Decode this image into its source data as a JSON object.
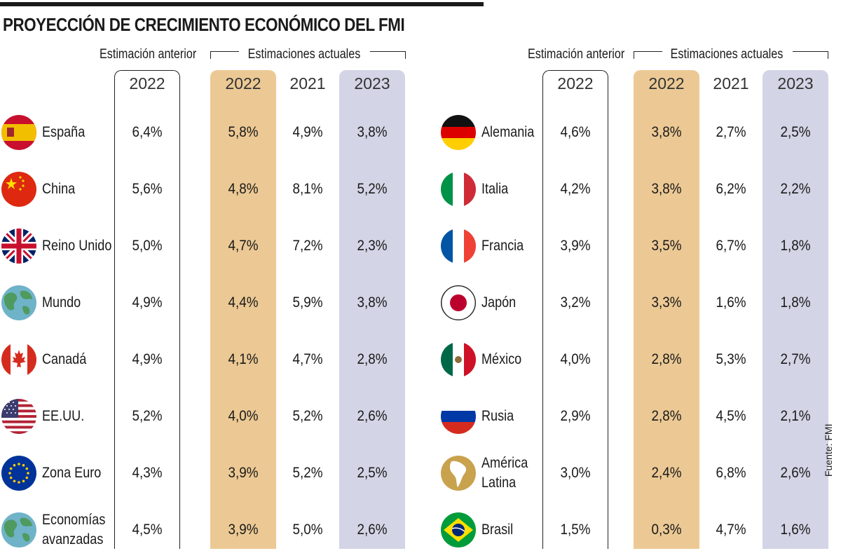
{
  "title": "PROYECCIÓN DE CRECIMIENTO ECONÓMICO DEL FMI",
  "headers": {
    "prev": "Estimación anterior",
    "current": "Estimaciones actuales",
    "year_prev": "2022",
    "year_2022": "2022",
    "year_2021": "2021",
    "year_2023": "2023"
  },
  "source": "Fuente: FMI",
  "colors": {
    "tan": "#ecc994",
    "lavender": "#d3d5e6",
    "border": "#222222"
  },
  "chart_data": {
    "type": "table",
    "columns": [
      "Estimación anterior 2022",
      "Estimaciones actuales 2022",
      "Estimaciones actuales 2021",
      "Estimaciones actuales 2023"
    ],
    "left": [
      {
        "name": "España",
        "flag": "spain-flag-icon",
        "prev2022": "6,4%",
        "v2022": "5,8%",
        "v2021": "4,9%",
        "v2023": "3,8%"
      },
      {
        "name": "China",
        "flag": "china-flag-icon",
        "prev2022": "5,6%",
        "v2022": "4,8%",
        "v2021": "8,1%",
        "v2023": "5,2%"
      },
      {
        "name": "Reino Unido",
        "flag": "uk-flag-icon",
        "prev2022": "5,0%",
        "v2022": "4,7%",
        "v2021": "7,2%",
        "v2023": "2,3%"
      },
      {
        "name": "Mundo",
        "flag": "globe-icon",
        "prev2022": "4,9%",
        "v2022": "4,4%",
        "v2021": "5,9%",
        "v2023": "3,8%"
      },
      {
        "name": "Canadá",
        "flag": "canada-flag-icon",
        "prev2022": "4,9%",
        "v2022": "4,1%",
        "v2021": "4,7%",
        "v2023": "2,8%"
      },
      {
        "name": "EE.UU.",
        "flag": "usa-flag-icon",
        "prev2022": "5,2%",
        "v2022": "4,0%",
        "v2021": "5,2%",
        "v2023": "2,6%"
      },
      {
        "name": "Zona Euro",
        "flag": "eu-flag-icon",
        "prev2022": "4,3%",
        "v2022": "3,9%",
        "v2021": "5,2%",
        "v2023": "2,5%"
      },
      {
        "name": "Economías\navanzadas",
        "flag": "globe-icon",
        "prev2022": "4,5%",
        "v2022": "3,9%",
        "v2021": "5,0%",
        "v2023": "2,6%"
      }
    ],
    "right": [
      {
        "name": "Alemania",
        "flag": "germany-flag-icon",
        "prev2022": "4,6%",
        "v2022": "3,8%",
        "v2021": "2,7%",
        "v2023": "2,5%"
      },
      {
        "name": "Italia",
        "flag": "italy-flag-icon",
        "prev2022": "4,2%",
        "v2022": "3,8%",
        "v2021": "6,2%",
        "v2023": "2,2%"
      },
      {
        "name": "Francia",
        "flag": "france-flag-icon",
        "prev2022": "3,9%",
        "v2022": "3,5%",
        "v2021": "6,7%",
        "v2023": "1,8%"
      },
      {
        "name": "Japón",
        "flag": "japan-flag-icon",
        "prev2022": "3,2%",
        "v2022": "3,3%",
        "v2021": "1,6%",
        "v2023": "1,8%"
      },
      {
        "name": "México",
        "flag": "mexico-flag-icon",
        "prev2022": "4,0%",
        "v2022": "2,8%",
        "v2021": "5,3%",
        "v2023": "2,7%"
      },
      {
        "name": "Rusia",
        "flag": "russia-flag-icon",
        "prev2022": "2,9%",
        "v2022": "2,8%",
        "v2021": "4,5%",
        "v2023": "2,1%"
      },
      {
        "name": "América\nLatina",
        "flag": "latam-map-icon",
        "prev2022": "3,0%",
        "v2022": "2,4%",
        "v2021": "6,8%",
        "v2023": "2,6%"
      },
      {
        "name": "Brasil",
        "flag": "brazil-flag-icon",
        "prev2022": "1,5%",
        "v2022": "0,3%",
        "v2021": "4,7%",
        "v2023": "1,6%"
      }
    ]
  }
}
